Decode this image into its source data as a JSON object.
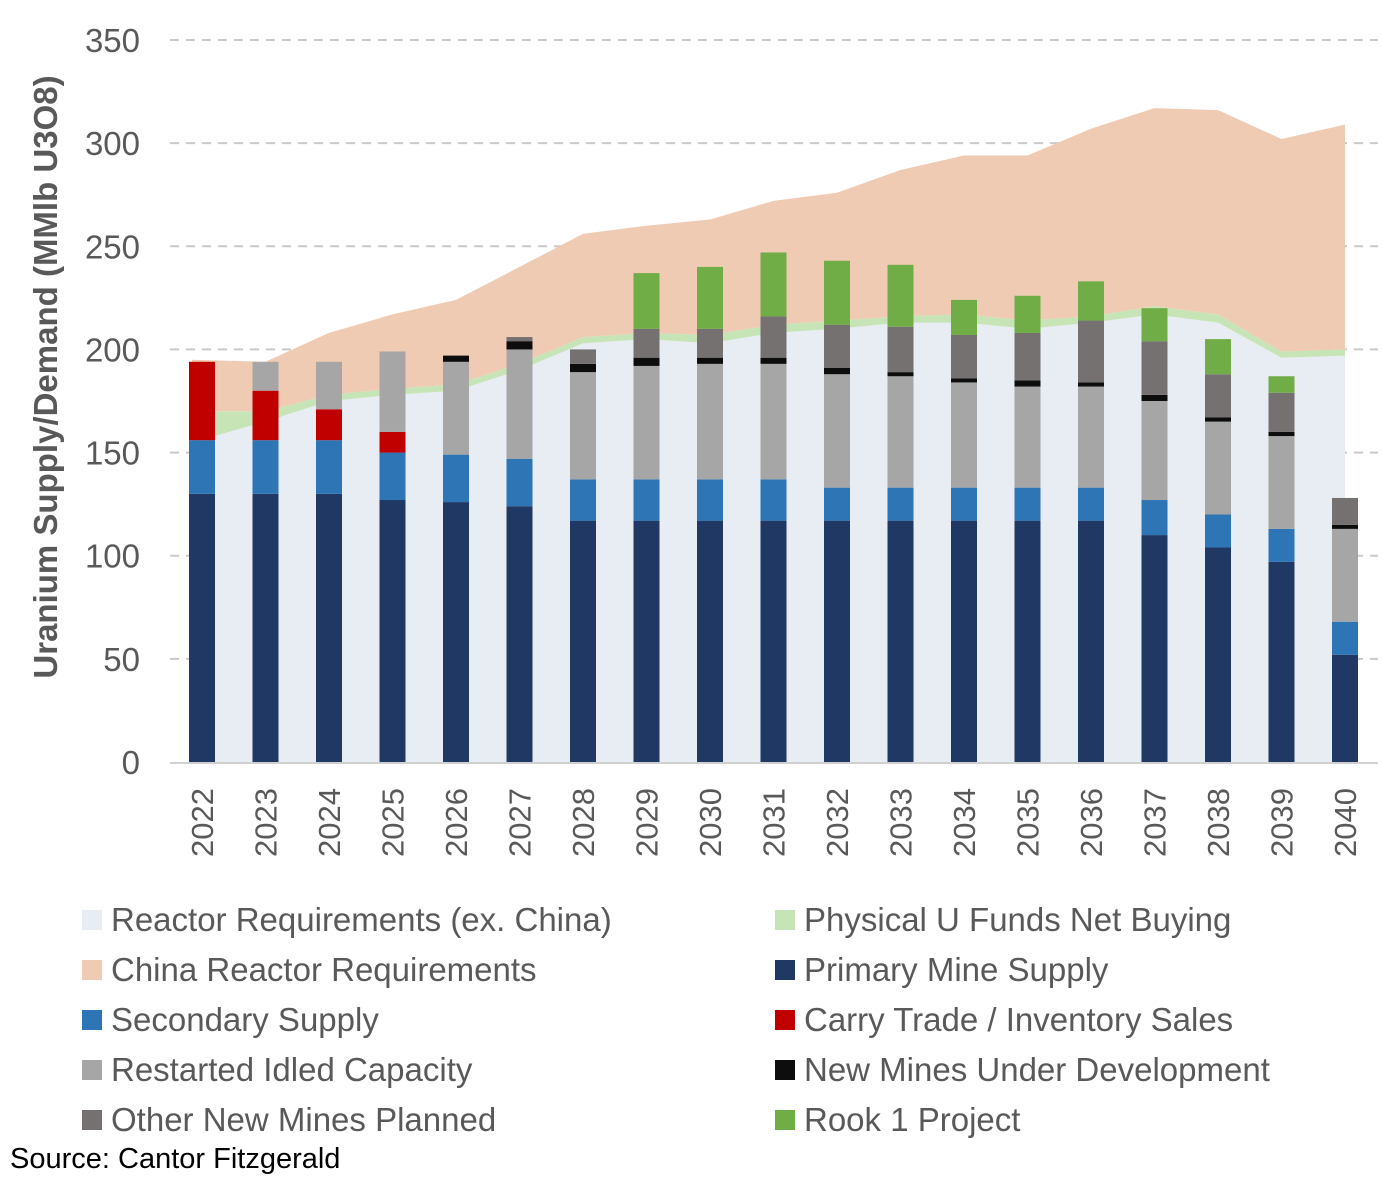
{
  "chart_data": {
    "type": "bar",
    "title": "",
    "xlabel": "",
    "ylabel": "Uranium Supply/Demand (MMlb U3O8)",
    "ylim": [
      0,
      350
    ],
    "yticks": [
      "0",
      "50",
      "100",
      "150",
      "200",
      "250",
      "300",
      "350"
    ],
    "grid": true,
    "categories": [
      "2022",
      "2023",
      "2024",
      "2025",
      "2026",
      "2027",
      "2028",
      "2029",
      "2030",
      "2031",
      "2032",
      "2033",
      "2034",
      "2035",
      "2036",
      "2037",
      "2038",
      "2039",
      "2040"
    ],
    "areas": [
      {
        "name": "Reactor Requirements (ex. China)",
        "color": "#E8ECF3",
        "values": [
          155,
          165,
          175,
          178,
          180,
          190,
          203,
          205,
          203,
          208,
          210,
          213,
          213,
          210,
          213,
          217,
          213,
          196,
          197
        ]
      },
      {
        "name": "Physical U Funds Net Buying",
        "color": "#C6E4B6",
        "values": [
          15,
          5,
          3,
          3,
          3,
          3,
          3,
          3,
          4,
          4,
          4,
          3,
          4,
          4,
          3,
          4,
          4,
          3,
          3
        ]
      },
      {
        "name": "China Reactor Requirements",
        "color": "#EFCBB3",
        "values": [
          25,
          24,
          30,
          36,
          41,
          47,
          50,
          52,
          56,
          60,
          62,
          71,
          77,
          80,
          91,
          96,
          99,
          103,
          109
        ]
      }
    ],
    "series": [
      {
        "name": "Primary Mine Supply",
        "color": "#1F3864",
        "values": [
          130,
          130,
          130,
          127,
          126,
          124,
          117,
          117,
          117,
          117,
          117,
          117,
          117,
          117,
          117,
          110,
          104,
          97,
          52
        ]
      },
      {
        "name": "Secondary Supply",
        "color": "#2E75B6",
        "values": [
          26,
          26,
          26,
          23,
          23,
          23,
          20,
          20,
          20,
          20,
          16,
          16,
          16,
          16,
          16,
          17,
          16,
          16,
          16
        ]
      },
      {
        "name": "Carry Trade / Inventory Sales",
        "color": "#C00000",
        "values": [
          38,
          24,
          15,
          10,
          0,
          0,
          0,
          0,
          0,
          0,
          0,
          0,
          0,
          0,
          0,
          0,
          0,
          0,
          0
        ]
      },
      {
        "name": "Restarted Idled Capacity",
        "color": "#A6A6A6",
        "values": [
          0,
          14,
          23,
          39,
          45,
          53,
          52,
          55,
          56,
          56,
          55,
          54,
          51,
          49,
          49,
          48,
          45,
          45,
          45
        ]
      },
      {
        "name": "New Mines Under Development",
        "color": "#0D0D0D",
        "values": [
          0,
          0,
          0,
          0,
          3,
          4,
          4,
          4,
          3,
          3,
          3,
          2,
          2,
          3,
          2,
          3,
          2,
          2,
          2
        ]
      },
      {
        "name": "Other New Mines Planned",
        "color": "#767171",
        "values": [
          0,
          0,
          0,
          0,
          0,
          2,
          7,
          14,
          14,
          20,
          21,
          22,
          21,
          23,
          30,
          26,
          21,
          19,
          13
        ]
      },
      {
        "name": "Rook 1 Project",
        "color": "#70AD47",
        "values": [
          0,
          0,
          0,
          0,
          0,
          0,
          0,
          27,
          30,
          31,
          31,
          30,
          17,
          18,
          19,
          16,
          17,
          8,
          0
        ]
      }
    ],
    "legend_placement": "bottom"
  },
  "legend": {
    "items": [
      {
        "label": "Reactor Requirements (ex. China)",
        "color": "#E8ECF3"
      },
      {
        "label": "Physical U Funds Net Buying",
        "color": "#C6E4B6"
      },
      {
        "label": "China Reactor Requirements",
        "color": "#EFCBB3"
      },
      {
        "label": "Primary Mine Supply",
        "color": "#1F3864"
      },
      {
        "label": "Secondary Supply",
        "color": "#2E75B6"
      },
      {
        "label": "Carry Trade / Inventory Sales",
        "color": "#C00000"
      },
      {
        "label": "Restarted Idled Capacity",
        "color": "#A6A6A6"
      },
      {
        "label": "New Mines Under Development",
        "color": "#0D0D0D"
      },
      {
        "label": "Other New Mines Planned",
        "color": "#767171"
      },
      {
        "label": "Rook 1 Project",
        "color": "#70AD47"
      }
    ]
  },
  "source": "Source: Cantor Fitzgerald"
}
